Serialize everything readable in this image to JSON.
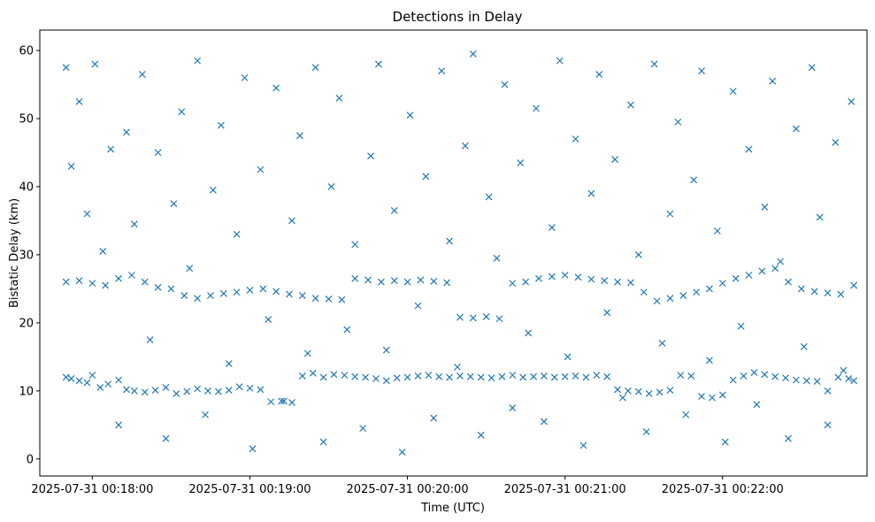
{
  "chart_data": {
    "type": "scatter",
    "title": "Detections in Delay",
    "xlabel": "Time (UTC)",
    "ylabel": "Bistatic Delay (km)",
    "x_axis": "time",
    "x_tick_labels": [
      "2025-07-31 00:18:00",
      "2025-07-31 00:19:00",
      "2025-07-31 00:20:00",
      "2025-07-31 00:21:00",
      "2025-07-31 00:22:00"
    ],
    "y_ticks": [
      0,
      10,
      20,
      30,
      40,
      50,
      60
    ],
    "xlim": [
      "2025-07-31 00:17:40",
      "2025-07-31 00:22:55"
    ],
    "ylim": [
      -2.5,
      63
    ],
    "marker": "x",
    "color": "#1f77b4",
    "grid": false,
    "legend": "none",
    "series": [
      {
        "x": [
          "2025-07-31 00:17:50",
          "2025-07-31 00:17:52",
          "2025-07-31 00:17:55",
          "2025-07-31 00:17:58",
          "2025-07-31 00:18:00",
          "2025-07-31 00:18:03",
          "2025-07-31 00:18:06",
          "2025-07-31 00:18:10",
          "2025-07-31 00:18:13",
          "2025-07-31 00:18:16",
          "2025-07-31 00:18:20",
          "2025-07-31 00:18:24",
          "2025-07-31 00:18:28",
          "2025-07-31 00:18:32",
          "2025-07-31 00:18:36",
          "2025-07-31 00:18:40",
          "2025-07-31 00:18:44",
          "2025-07-31 00:18:48",
          "2025-07-31 00:18:52",
          "2025-07-31 00:18:56",
          "2025-07-31 00:19:00",
          "2025-07-31 00:19:04",
          "2025-07-31 00:19:08",
          "2025-07-31 00:19:12",
          "2025-07-31 00:19:16",
          "2025-07-31 00:19:20",
          "2025-07-31 00:19:24",
          "2025-07-31 00:19:28",
          "2025-07-31 00:19:32",
          "2025-07-31 00:19:36",
          "2025-07-31 00:19:40",
          "2025-07-31 00:19:44",
          "2025-07-31 00:19:48",
          "2025-07-31 00:19:52",
          "2025-07-31 00:19:56",
          "2025-07-31 00:20:00",
          "2025-07-31 00:20:04",
          "2025-07-31 00:20:08",
          "2025-07-31 00:20:12",
          "2025-07-31 00:20:16",
          "2025-07-31 00:20:20",
          "2025-07-31 00:20:24",
          "2025-07-31 00:20:28",
          "2025-07-31 00:20:32",
          "2025-07-31 00:20:36",
          "2025-07-31 00:20:40",
          "2025-07-31 00:20:44",
          "2025-07-31 00:20:48",
          "2025-07-31 00:20:52",
          "2025-07-31 00:20:56",
          "2025-07-31 00:21:00",
          "2025-07-31 00:21:04",
          "2025-07-31 00:21:08",
          "2025-07-31 00:21:12",
          "2025-07-31 00:21:16",
          "2025-07-31 00:21:20",
          "2025-07-31 00:21:24",
          "2025-07-31 00:21:28",
          "2025-07-31 00:21:32",
          "2025-07-31 00:21:36",
          "2025-07-31 00:21:40",
          "2025-07-31 00:21:44",
          "2025-07-31 00:21:48",
          "2025-07-31 00:21:52",
          "2025-07-31 00:21:56",
          "2025-07-31 00:22:00",
          "2025-07-31 00:22:04",
          "2025-07-31 00:22:08",
          "2025-07-31 00:22:12",
          "2025-07-31 00:22:16",
          "2025-07-31 00:22:20",
          "2025-07-31 00:22:24",
          "2025-07-31 00:22:28",
          "2025-07-31 00:22:32",
          "2025-07-31 00:22:36",
          "2025-07-31 00:22:40",
          "2025-07-31 00:22:44",
          "2025-07-31 00:22:48",
          "2025-07-31 00:22:50"
        ],
        "y": [
          12.0,
          11.8,
          11.5,
          11.2,
          12.3,
          10.5,
          11.0,
          11.6,
          10.2,
          10.0,
          9.8,
          10.1,
          10.5,
          9.6,
          9.9,
          10.3,
          10.0,
          9.9,
          10.1,
          10.6,
          10.4,
          10.2,
          8.4,
          8.5,
          8.3,
          12.2,
          12.6,
          12.0,
          12.4,
          12.3,
          12.1,
          12.0,
          11.8,
          11.5,
          11.9,
          12.0,
          12.2,
          12.3,
          12.1,
          12.0,
          12.2,
          12.1,
          12.0,
          11.9,
          12.1,
          12.3,
          12.0,
          12.1,
          12.2,
          12.0,
          12.1,
          12.2,
          12.0,
          12.3,
          12.1,
          10.2,
          10.0,
          9.9,
          9.6,
          9.8,
          10.1,
          12.3,
          12.2,
          9.2,
          9.0,
          9.4,
          11.6,
          12.2,
          12.7,
          12.4,
          12.1,
          11.9,
          11.6,
          11.5,
          11.4,
          10.0,
          12.0,
          11.8,
          11.5
        ]
      },
      {
        "x": [
          "2025-07-31 00:17:50",
          "2025-07-31 00:17:55",
          "2025-07-31 00:18:00",
          "2025-07-31 00:18:05",
          "2025-07-31 00:18:10",
          "2025-07-31 00:18:15",
          "2025-07-31 00:18:20",
          "2025-07-31 00:18:25",
          "2025-07-31 00:18:30",
          "2025-07-31 00:18:35",
          "2025-07-31 00:18:40",
          "2025-07-31 00:18:45",
          "2025-07-31 00:18:50",
          "2025-07-31 00:18:55",
          "2025-07-31 00:19:00",
          "2025-07-31 00:19:05",
          "2025-07-31 00:19:10",
          "2025-07-31 00:19:15",
          "2025-07-31 00:19:20",
          "2025-07-31 00:19:25",
          "2025-07-31 00:19:30",
          "2025-07-31 00:19:35",
          "2025-07-31 00:19:40",
          "2025-07-31 00:19:45",
          "2025-07-31 00:19:50",
          "2025-07-31 00:19:55",
          "2025-07-31 00:20:00",
          "2025-07-31 00:20:05",
          "2025-07-31 00:20:10",
          "2025-07-31 00:20:15",
          "2025-07-31 00:20:20",
          "2025-07-31 00:20:25",
          "2025-07-31 00:20:30",
          "2025-07-31 00:20:35",
          "2025-07-31 00:20:40",
          "2025-07-31 00:20:45",
          "2025-07-31 00:20:50",
          "2025-07-31 00:20:55",
          "2025-07-31 00:21:00",
          "2025-07-31 00:21:05",
          "2025-07-31 00:21:10",
          "2025-07-31 00:21:15",
          "2025-07-31 00:21:20",
          "2025-07-31 00:21:25",
          "2025-07-31 00:21:30",
          "2025-07-31 00:21:35",
          "2025-07-31 00:21:40",
          "2025-07-31 00:21:45",
          "2025-07-31 00:21:50",
          "2025-07-31 00:21:55",
          "2025-07-31 00:22:00",
          "2025-07-31 00:22:05",
          "2025-07-31 00:22:10",
          "2025-07-31 00:22:15",
          "2025-07-31 00:22:20",
          "2025-07-31 00:22:25",
          "2025-07-31 00:22:30",
          "2025-07-31 00:22:35",
          "2025-07-31 00:22:40",
          "2025-07-31 00:22:45",
          "2025-07-31 00:22:50"
        ],
        "y": [
          26.0,
          26.2,
          25.8,
          25.5,
          26.5,
          27.0,
          26.0,
          25.2,
          25.0,
          24.0,
          23.6,
          24.0,
          24.3,
          24.5,
          24.8,
          25.0,
          24.6,
          24.2,
          24.0,
          23.6,
          23.5,
          23.4,
          26.5,
          26.3,
          26.0,
          26.2,
          26.0,
          26.3,
          26.1,
          25.9,
          20.8,
          20.7,
          20.9,
          20.6,
          25.8,
          26.0,
          26.5,
          26.8,
          27.0,
          26.7,
          26.4,
          26.2,
          26.0,
          25.9,
          24.5,
          23.2,
          23.6,
          24.0,
          24.5,
          25.0,
          25.8,
          26.5,
          27.0,
          27.6,
          28.0,
          26.0,
          25.0,
          24.6,
          24.4,
          24.2,
          25.5
        ]
      },
      {
        "x": [
          "2025-07-31 00:17:50",
          "2025-07-31 00:17:52",
          "2025-07-31 00:17:55",
          "2025-07-31 00:17:58",
          "2025-07-31 00:18:01",
          "2025-07-31 00:18:04",
          "2025-07-31 00:18:07",
          "2025-07-31 00:18:10",
          "2025-07-31 00:18:13",
          "2025-07-31 00:18:16",
          "2025-07-31 00:18:19",
          "2025-07-31 00:18:22",
          "2025-07-31 00:18:25",
          "2025-07-31 00:18:28",
          "2025-07-31 00:18:31",
          "2025-07-31 00:18:34",
          "2025-07-31 00:18:37",
          "2025-07-31 00:18:40",
          "2025-07-31 00:18:43",
          "2025-07-31 00:18:46",
          "2025-07-31 00:18:49",
          "2025-07-31 00:18:52",
          "2025-07-31 00:18:55",
          "2025-07-31 00:18:58",
          "2025-07-31 00:19:01",
          "2025-07-31 00:19:04",
          "2025-07-31 00:19:07",
          "2025-07-31 00:19:10",
          "2025-07-31 00:19:13",
          "2025-07-31 00:19:16",
          "2025-07-31 00:19:19",
          "2025-07-31 00:19:22",
          "2025-07-31 00:19:25",
          "2025-07-31 00:19:28",
          "2025-07-31 00:19:31",
          "2025-07-31 00:19:34",
          "2025-07-31 00:19:37",
          "2025-07-31 00:19:40",
          "2025-07-31 00:19:43",
          "2025-07-31 00:19:46",
          "2025-07-31 00:19:49",
          "2025-07-31 00:19:52",
          "2025-07-31 00:19:55",
          "2025-07-31 00:19:58",
          "2025-07-31 00:20:01",
          "2025-07-31 00:20:04",
          "2025-07-31 00:20:07",
          "2025-07-31 00:20:10",
          "2025-07-31 00:20:13",
          "2025-07-31 00:20:16",
          "2025-07-31 00:20:19",
          "2025-07-31 00:20:22",
          "2025-07-31 00:20:25",
          "2025-07-31 00:20:28",
          "2025-07-31 00:20:31",
          "2025-07-31 00:20:34",
          "2025-07-31 00:20:37",
          "2025-07-31 00:20:40",
          "2025-07-31 00:20:43",
          "2025-07-31 00:20:46",
          "2025-07-31 00:20:49",
          "2025-07-31 00:20:52",
          "2025-07-31 00:20:55",
          "2025-07-31 00:20:58",
          "2025-07-31 00:21:01",
          "2025-07-31 00:21:04",
          "2025-07-31 00:21:07",
          "2025-07-31 00:21:10",
          "2025-07-31 00:21:13",
          "2025-07-31 00:21:16",
          "2025-07-31 00:21:19",
          "2025-07-31 00:21:22",
          "2025-07-31 00:21:25",
          "2025-07-31 00:21:28",
          "2025-07-31 00:21:31",
          "2025-07-31 00:21:34",
          "2025-07-31 00:21:37",
          "2025-07-31 00:21:40",
          "2025-07-31 00:21:43",
          "2025-07-31 00:21:46",
          "2025-07-31 00:21:49",
          "2025-07-31 00:21:52",
          "2025-07-31 00:21:55",
          "2025-07-31 00:21:58",
          "2025-07-31 00:22:01",
          "2025-07-31 00:22:04",
          "2025-07-31 00:22:07",
          "2025-07-31 00:22:10",
          "2025-07-31 00:22:13",
          "2025-07-31 00:22:16",
          "2025-07-31 00:22:19",
          "2025-07-31 00:22:22",
          "2025-07-31 00:22:25",
          "2025-07-31 00:22:28",
          "2025-07-31 00:22:31",
          "2025-07-31 00:22:34",
          "2025-07-31 00:22:37",
          "2025-07-31 00:22:40",
          "2025-07-31 00:22:43",
          "2025-07-31 00:22:46",
          "2025-07-31 00:22:49"
        ],
        "y": [
          57.5,
          43.0,
          52.5,
          36.0,
          58.0,
          30.5,
          45.5,
          5.0,
          48.0,
          34.5,
          56.5,
          17.5,
          45.0,
          3.0,
          37.5,
          51.0,
          28.0,
          58.5,
          6.5,
          39.5,
          49.0,
          14.0,
          33.0,
          56.0,
          1.5,
          42.5,
          20.5,
          54.5,
          8.5,
          35.0,
          47.5,
          15.5,
          57.5,
          2.5,
          40.0,
          53.0,
          19.0,
          31.5,
          4.5,
          44.5,
          58.0,
          16.0,
          36.5,
          1.0,
          50.5,
          22.5,
          41.5,
          6.0,
          57.0,
          32.0,
          13.5,
          46.0,
          59.5,
          3.5,
          38.5,
          29.5,
          55.0,
          7.5,
          43.5,
          18.5,
          51.5,
          5.5,
          34.0,
          58.5,
          15.0,
          47.0,
          2.0,
          39.0,
          56.5,
          21.5,
          44.0,
          9.0,
          52.0,
          30.0,
          4.0,
          58.0,
          17.0,
          36.0,
          49.5,
          6.5,
          41.0,
          57.0,
          14.5,
          33.5,
          2.5,
          54.0,
          19.5,
          45.5,
          8.0,
          37.0,
          55.5,
          29.0,
          3.0,
          48.5,
          16.5,
          57.5,
          35.5,
          5.0,
          46.5,
          13.0,
          52.5
        ]
      }
    ]
  }
}
